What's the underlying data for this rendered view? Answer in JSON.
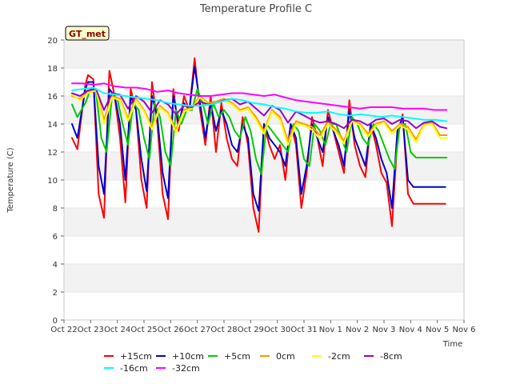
{
  "chart_data": {
    "type": "line",
    "title": "Temperature Profile C",
    "xlabel": "Time",
    "ylabel": "Temperature (C)",
    "ylim": [
      0,
      20
    ],
    "yticks": [
      0,
      2,
      4,
      6,
      8,
      10,
      12,
      14,
      16,
      18,
      20
    ],
    "xlim": [
      0,
      15
    ],
    "xtick_labels": [
      "Oct 22",
      "Oct 23",
      "Oct 24",
      "Oct 25",
      "Oct 26",
      "Oct 27",
      "Oct 28",
      "Oct 29",
      "Oct 30",
      "Oct 31",
      "Nov 1",
      "Nov 2",
      "Nov 3",
      "Nov 4",
      "Nov 5",
      "Nov 6"
    ],
    "xtick_values": [
      0,
      1,
      2,
      3,
      4,
      5,
      6,
      7,
      8,
      9,
      10,
      11,
      12,
      13,
      14,
      15
    ],
    "grid": "horizontal bands",
    "badge": "GT_met",
    "legend_position": "bottom",
    "series": [
      {
        "name": "+15cm",
        "color": "#ff0000",
        "x": [
          0.3,
          0.5,
          0.8,
          0.9,
          1.1,
          1.3,
          1.5,
          1.7,
          1.9,
          2.1,
          2.3,
          2.5,
          2.7,
          2.9,
          3.1,
          3.3,
          3.5,
          3.7,
          3.9,
          4.1,
          4.3,
          4.5,
          4.7,
          4.9,
          5.1,
          5.3,
          5.5,
          5.7,
          5.9,
          6.1,
          6.3,
          6.5,
          6.7,
          6.9,
          7.1,
          7.3,
          7.5,
          7.7,
          7.9,
          8.1,
          8.3,
          8.5,
          8.7,
          8.9,
          9.1,
          9.3,
          9.5,
          9.7,
          9.9,
          10.1,
          10.3,
          10.5,
          10.7,
          10.9,
          11.1,
          11.3,
          11.5,
          11.7,
          11.9,
          12.1,
          12.3,
          12.5,
          12.7,
          12.9,
          13.1,
          13.3,
          13.5,
          13.7,
          13.9,
          14.1,
          14.3
        ],
        "y": [
          13.0,
          12.2,
          16.8,
          17.5,
          17.2,
          9.0,
          7.3,
          17.8,
          16.0,
          13.0,
          8.4,
          16.5,
          15.0,
          10.0,
          8.0,
          17.0,
          14.0,
          9.0,
          7.2,
          16.5,
          13.5,
          16.0,
          15.0,
          18.7,
          15.0,
          12.5,
          16.0,
          12.0,
          15.5,
          13.0,
          11.5,
          11.0,
          14.5,
          12.5,
          8.0,
          6.3,
          14.0,
          12.5,
          11.5,
          12.5,
          10.0,
          14.0,
          12.5,
          8.0,
          10.5,
          14.5,
          13.0,
          11.0,
          15.0,
          13.5,
          12.0,
          10.5,
          15.7,
          12.5,
          11.0,
          10.2,
          14.0,
          12.5,
          10.5,
          9.8,
          6.7,
          13.0,
          14.7,
          9.0,
          8.3,
          8.3,
          8.3,
          8.3,
          8.3,
          8.3,
          8.3
        ]
      },
      {
        "name": "+10cm",
        "color": "#0000cc",
        "x": [
          0.3,
          0.5,
          0.8,
          0.9,
          1.1,
          1.3,
          1.5,
          1.7,
          1.9,
          2.1,
          2.3,
          2.5,
          2.7,
          2.9,
          3.1,
          3.3,
          3.5,
          3.7,
          3.9,
          4.1,
          4.3,
          4.5,
          4.7,
          4.9,
          5.1,
          5.3,
          5.5,
          5.7,
          5.9,
          6.1,
          6.3,
          6.5,
          6.7,
          6.9,
          7.1,
          7.3,
          7.5,
          7.7,
          7.9,
          8.1,
          8.3,
          8.5,
          8.7,
          8.9,
          9.1,
          9.3,
          9.5,
          9.7,
          9.9,
          10.1,
          10.3,
          10.5,
          10.7,
          10.9,
          11.1,
          11.3,
          11.5,
          11.7,
          11.9,
          12.1,
          12.3,
          12.5,
          12.7,
          12.9,
          13.1,
          13.3,
          13.5,
          13.7,
          13.9,
          14.1,
          14.3
        ],
        "y": [
          14.0,
          13.0,
          16.5,
          17.0,
          17.0,
          11.0,
          9.0,
          16.5,
          16.0,
          14.0,
          10.0,
          16.0,
          15.0,
          11.5,
          9.2,
          16.0,
          14.5,
          10.5,
          8.7,
          16.0,
          14.0,
          15.5,
          15.0,
          18.1,
          15.5,
          13.0,
          15.5,
          13.5,
          15.0,
          14.0,
          12.5,
          12.0,
          14.0,
          13.0,
          9.0,
          7.8,
          14.0,
          13.0,
          12.5,
          12.0,
          11.0,
          14.0,
          13.0,
          9.0,
          11.0,
          14.0,
          13.0,
          12.0,
          14.5,
          13.5,
          12.5,
          11.0,
          15.0,
          13.0,
          12.0,
          11.0,
          14.0,
          13.0,
          11.5,
          10.5,
          8.0,
          13.5,
          14.5,
          10.0,
          9.5,
          9.5,
          9.5,
          9.5,
          9.5,
          9.5,
          9.5
        ]
      },
      {
        "name": "+5cm",
        "color": "#00cc00",
        "x": [
          0.3,
          0.5,
          0.8,
          1.0,
          1.2,
          1.4,
          1.6,
          1.8,
          2.0,
          2.2,
          2.4,
          2.6,
          2.8,
          3.0,
          3.2,
          3.4,
          3.6,
          3.8,
          4.0,
          4.2,
          4.4,
          4.6,
          4.8,
          5.0,
          5.2,
          5.4,
          5.6,
          5.8,
          6.0,
          6.2,
          6.4,
          6.6,
          6.8,
          7.0,
          7.2,
          7.4,
          7.6,
          7.8,
          8.0,
          8.2,
          8.4,
          8.6,
          8.8,
          9.0,
          9.2,
          9.4,
          9.6,
          9.8,
          10.0,
          10.2,
          10.4,
          10.6,
          10.8,
          11.0,
          11.2,
          11.4,
          11.6,
          11.8,
          12.0,
          12.2,
          12.4,
          12.6,
          12.8,
          13.0,
          13.2,
          13.4,
          13.6,
          13.8,
          14.0,
          14.2,
          14.35
        ],
        "y": [
          15.4,
          14.5,
          15.5,
          16.5,
          16.3,
          13.0,
          12.0,
          16.0,
          15.8,
          14.0,
          12.5,
          15.5,
          15.0,
          13.0,
          11.5,
          15.5,
          14.5,
          12.0,
          11.0,
          15.0,
          14.0,
          15.0,
          15.0,
          16.5,
          15.5,
          14.0,
          15.5,
          14.5,
          15.0,
          14.5,
          13.5,
          13.0,
          14.5,
          13.5,
          11.5,
          10.4,
          14.0,
          13.5,
          13.0,
          12.5,
          12.0,
          14.0,
          13.5,
          11.5,
          11.0,
          14.0,
          13.5,
          12.5,
          14.0,
          14.0,
          13.0,
          12.0,
          14.5,
          14.0,
          13.0,
          12.5,
          14.0,
          13.5,
          12.5,
          11.5,
          10.8,
          14.0,
          14.0,
          12.0,
          11.6,
          11.6,
          11.6,
          11.6,
          11.6,
          11.6,
          11.6
        ]
      },
      {
        "name": "0cm",
        "color": "#ff9900",
        "x": [
          0.3,
          0.6,
          0.9,
          1.2,
          1.5,
          1.8,
          2.1,
          2.4,
          2.7,
          3.0,
          3.3,
          3.6,
          3.9,
          4.2,
          4.5,
          4.8,
          5.1,
          5.4,
          5.7,
          6.0,
          6.3,
          6.6,
          6.9,
          7.2,
          7.5,
          7.8,
          8.1,
          8.4,
          8.7,
          9.0,
          9.3,
          9.6,
          9.9,
          10.2,
          10.5,
          10.8,
          11.1,
          11.4,
          11.7,
          12.0,
          12.3,
          12.6,
          12.9,
          13.2,
          13.5,
          13.8,
          14.1,
          14.35
        ],
        "y": [
          16.0,
          15.8,
          16.3,
          16.5,
          14.3,
          16.0,
          15.8,
          14.4,
          15.8,
          15.0,
          13.8,
          15.3,
          14.8,
          13.6,
          15.0,
          15.2,
          16.0,
          15.5,
          15.6,
          15.8,
          15.5,
          15.0,
          15.2,
          14.5,
          13.5,
          15.0,
          14.5,
          12.8,
          14.2,
          14.0,
          13.8,
          13.2,
          14.2,
          13.6,
          12.8,
          14.3,
          14.0,
          13.3,
          14.0,
          14.2,
          13.5,
          14.0,
          13.8,
          12.9,
          14.0,
          14.1,
          13.2,
          13.2
        ]
      },
      {
        "name": "-2cm",
        "color": "#ffff00",
        "x": [
          0.3,
          0.6,
          0.9,
          1.2,
          1.5,
          1.8,
          2.1,
          2.4,
          2.7,
          3.0,
          3.3,
          3.6,
          3.9,
          4.2,
          4.5,
          4.8,
          5.1,
          5.4,
          5.7,
          6.0,
          6.3,
          6.6,
          6.9,
          7.2,
          7.5,
          7.8,
          8.1,
          8.4,
          8.7,
          9.0,
          9.3,
          9.6,
          9.9,
          10.2,
          10.5,
          10.8,
          11.1,
          11.4,
          11.7,
          12.0,
          12.3,
          12.6,
          12.9,
          13.2,
          13.5,
          13.8,
          14.1,
          14.35
        ],
        "y": [
          16.1,
          15.7,
          16.2,
          16.4,
          14.0,
          15.9,
          15.7,
          14.2,
          15.7,
          14.9,
          13.6,
          15.2,
          14.7,
          13.4,
          14.9,
          15.1,
          15.9,
          15.4,
          15.5,
          15.7,
          15.4,
          14.9,
          15.1,
          14.3,
          13.3,
          14.9,
          14.3,
          12.5,
          14.0,
          13.9,
          13.6,
          12.9,
          14.0,
          13.4,
          12.6,
          14.2,
          13.9,
          13.1,
          13.9,
          14.1,
          13.3,
          13.9,
          13.6,
          12.7,
          13.9,
          14.0,
          13.0,
          13.0
        ]
      },
      {
        "name": "-8cm",
        "color": "#9900cc",
        "x": [
          0.3,
          0.6,
          0.9,
          1.2,
          1.5,
          1.8,
          2.1,
          2.4,
          2.7,
          3.0,
          3.3,
          3.6,
          3.9,
          4.2,
          4.5,
          4.8,
          5.1,
          5.4,
          5.7,
          6.0,
          6.3,
          6.6,
          6.9,
          7.2,
          7.5,
          7.8,
          8.1,
          8.4,
          8.7,
          9.0,
          9.3,
          9.6,
          9.9,
          10.2,
          10.5,
          10.8,
          11.1,
          11.4,
          11.7,
          12.0,
          12.3,
          12.6,
          12.9,
          13.2,
          13.5,
          13.8,
          14.1,
          14.35
        ],
        "y": [
          16.2,
          16.0,
          16.4,
          16.5,
          15.0,
          16.2,
          16.1,
          15.1,
          16.0,
          15.6,
          14.8,
          15.7,
          15.4,
          14.7,
          15.3,
          15.2,
          15.6,
          15.4,
          15.5,
          15.7,
          15.8,
          15.4,
          15.6,
          15.1,
          14.6,
          15.3,
          15.0,
          14.1,
          14.9,
          14.6,
          14.3,
          14.1,
          14.2,
          14.0,
          13.7,
          14.3,
          14.2,
          13.9,
          14.3,
          14.4,
          14.0,
          14.3,
          14.2,
          13.7,
          14.1,
          14.2,
          13.8,
          13.7
        ]
      },
      {
        "name": "-16cm",
        "color": "#00ffff",
        "x": [
          0.3,
          0.7,
          1.1,
          1.5,
          1.9,
          2.3,
          2.7,
          3.1,
          3.5,
          3.9,
          4.3,
          4.7,
          5.1,
          5.5,
          5.9,
          6.3,
          6.7,
          7.1,
          7.5,
          7.9,
          8.3,
          8.7,
          9.1,
          9.5,
          9.9,
          10.3,
          10.7,
          11.1,
          11.5,
          11.9,
          12.3,
          12.7,
          13.1,
          13.5,
          13.9,
          14.35
        ],
        "y": [
          16.4,
          16.5,
          16.6,
          16.2,
          16.1,
          16.0,
          15.9,
          15.8,
          15.7,
          15.5,
          15.4,
          15.3,
          15.3,
          15.4,
          15.6,
          15.8,
          15.7,
          15.5,
          15.4,
          15.2,
          15.1,
          14.9,
          14.8,
          14.8,
          14.9,
          14.7,
          14.6,
          14.7,
          14.6,
          14.5,
          14.6,
          14.5,
          14.4,
          14.3,
          14.3,
          14.2
        ]
      },
      {
        "name": "-32cm",
        "color": "#ff00ff",
        "x": [
          0.3,
          0.7,
          1.1,
          1.5,
          1.9,
          2.3,
          2.7,
          3.1,
          3.5,
          3.9,
          4.3,
          4.7,
          5.1,
          5.5,
          5.9,
          6.3,
          6.7,
          7.1,
          7.5,
          7.9,
          8.3,
          8.7,
          9.1,
          9.5,
          9.9,
          10.3,
          10.7,
          11.1,
          11.5,
          11.9,
          12.3,
          12.7,
          13.1,
          13.5,
          13.9,
          14.35
        ],
        "y": [
          16.9,
          16.9,
          16.8,
          16.9,
          16.7,
          16.6,
          16.6,
          16.5,
          16.3,
          16.4,
          16.2,
          16.1,
          16.0,
          16.0,
          16.1,
          16.2,
          16.2,
          16.1,
          16.0,
          16.1,
          15.9,
          15.7,
          15.6,
          15.5,
          15.4,
          15.3,
          15.2,
          15.1,
          15.2,
          15.2,
          15.2,
          15.1,
          15.1,
          15.1,
          15.0,
          15.0
        ]
      }
    ]
  }
}
